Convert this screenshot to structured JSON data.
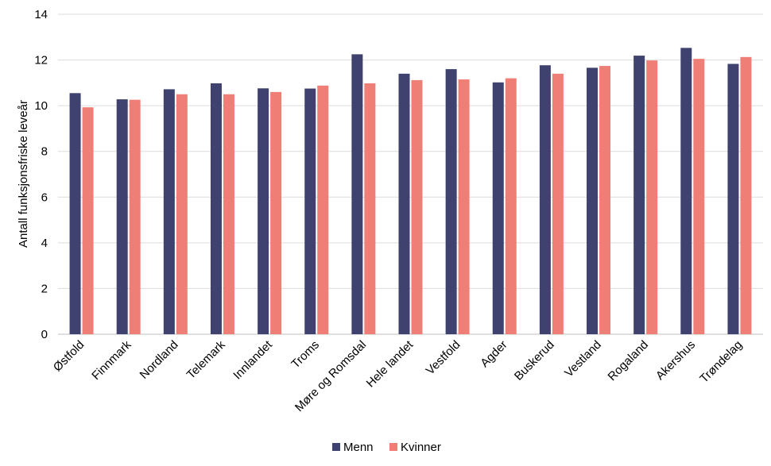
{
  "chart_data": {
    "type": "bar",
    "ylabel": "Antall funksjonsfriske leveår",
    "ylim": [
      0,
      14
    ],
    "yticks": [
      0,
      2,
      4,
      6,
      8,
      10,
      12,
      14
    ],
    "grid": true,
    "legend_position": "bottom-center",
    "categories": [
      "Østfold",
      "Finnmark",
      "Nordland",
      "Telemark",
      "Innlandet",
      "Troms",
      "Møre og Romsdal",
      "Hele landet",
      "Vestfold",
      "Agder",
      "Buskerud",
      "Vestland",
      "Rogaland",
      "Akershus",
      "Trøndelag"
    ],
    "series": [
      {
        "name": "Menn",
        "color": "#3f426e",
        "values": [
          10.55,
          10.28,
          10.72,
          10.98,
          10.76,
          10.75,
          12.25,
          11.4,
          11.6,
          11.02,
          11.77,
          11.66,
          12.19,
          12.53,
          11.83
        ]
      },
      {
        "name": "Kvinner",
        "color": "#ef7f76",
        "values": [
          9.93,
          10.26,
          10.5,
          10.5,
          10.6,
          10.88,
          10.98,
          11.12,
          11.15,
          11.2,
          11.4,
          11.74,
          11.98,
          12.05,
          12.13
        ]
      }
    ]
  }
}
